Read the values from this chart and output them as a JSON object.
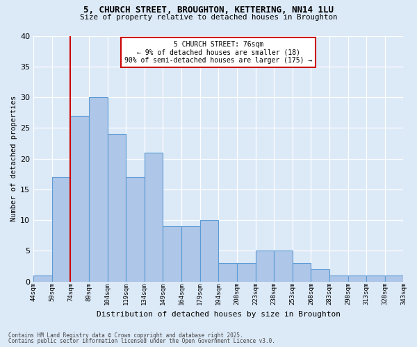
{
  "title_line1": "5, CHURCH STREET, BROUGHTON, KETTERING, NN14 1LU",
  "title_line2": "Size of property relative to detached houses in Broughton",
  "xlabel": "Distribution of detached houses by size in Broughton",
  "ylabel": "Number of detached properties",
  "bin_edges": [
    "44sqm",
    "59sqm",
    "74sqm",
    "89sqm",
    "104sqm",
    "119sqm",
    "134sqm",
    "149sqm",
    "164sqm",
    "179sqm",
    "194sqm",
    "208sqm",
    "223sqm",
    "238sqm",
    "253sqm",
    "268sqm",
    "283sqm",
    "298sqm",
    "313sqm",
    "328sqm",
    "343sqm"
  ],
  "bar_values": [
    1,
    17,
    27,
    30,
    24,
    17,
    21,
    9,
    9,
    10,
    3,
    3,
    5,
    5,
    3,
    2,
    1,
    1,
    1,
    1
  ],
  "bar_color": "#aec6e8",
  "bar_edge_color": "#5b9bd5",
  "background_color": "#dce9f7",
  "red_line_x": 2,
  "red_line_color": "#cc0000",
  "annotation_text": "5 CHURCH STREET: 76sqm\n← 9% of detached houses are smaller (18)\n90% of semi-detached houses are larger (175) →",
  "annotation_box_color": "white",
  "annotation_box_edge_color": "#cc0000",
  "ylim": [
    0,
    40
  ],
  "yticks": [
    0,
    5,
    10,
    15,
    20,
    25,
    30,
    35,
    40
  ],
  "footnote_line1": "Contains HM Land Registry data © Crown copyright and database right 2025.",
  "footnote_line2": "Contains public sector information licensed under the Open Government Licence v3.0.",
  "figsize": [
    6.0,
    5.0
  ],
  "dpi": 100
}
